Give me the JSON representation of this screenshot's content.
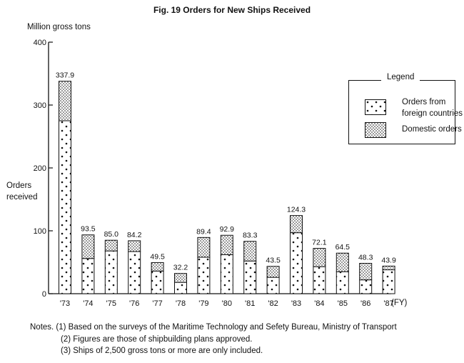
{
  "title": "Fig. 19 Orders for New Ships Received",
  "y_unit": "Million gross tons",
  "y_label": [
    "Orders",
    "received"
  ],
  "x_unit": "(FY)",
  "legend": {
    "title": "Legend",
    "items": [
      {
        "label_lines": [
          "Orders from",
          "foreign countries"
        ],
        "pattern": "sparse-dots"
      },
      {
        "label_lines": [
          "Domestic orders"
        ],
        "pattern": "dense-dots"
      }
    ]
  },
  "notes": [
    "Notes. (1) Based on the surveys of the Maritime Technology and Sefety Bureau, Ministry of Transport",
    "(2) Figures are those of shipbuilding plans approved.",
    "(3) Ships of 2,500 gross tons or more are only included."
  ],
  "chart_data": {
    "type": "bar",
    "stacked": true,
    "categories": [
      "'73",
      "'74",
      "'75",
      "'76",
      "'77",
      "'78",
      "'79",
      "'80",
      "'81",
      "'82",
      "'83",
      "'84",
      "'85",
      "'86",
      "'87"
    ],
    "series": [
      {
        "name": "Orders from foreign countries",
        "values": [
          275,
          56,
          68,
          67,
          36,
          18,
          58,
          62,
          52,
          26,
          97,
          43,
          35,
          22,
          38
        ]
      },
      {
        "name": "Domestic orders",
        "values": [
          62.9,
          37.5,
          17.0,
          17.2,
          13.5,
          14.2,
          31.4,
          30.9,
          31.3,
          17.5,
          27.3,
          29.1,
          29.5,
          26.3,
          5.9
        ]
      }
    ],
    "totals": [
      "337.9",
      "93.5",
      "85.0",
      "84.2",
      "49.5",
      "32.2",
      "89.4",
      "92.9",
      "83.3",
      "43.5",
      "124.3",
      "72.1",
      "64.5",
      "48.3",
      "43.9"
    ],
    "yticks": [
      0,
      100,
      200,
      300,
      400
    ],
    "ylim": [
      0,
      400
    ],
    "grid": false,
    "legend_position": "right"
  }
}
